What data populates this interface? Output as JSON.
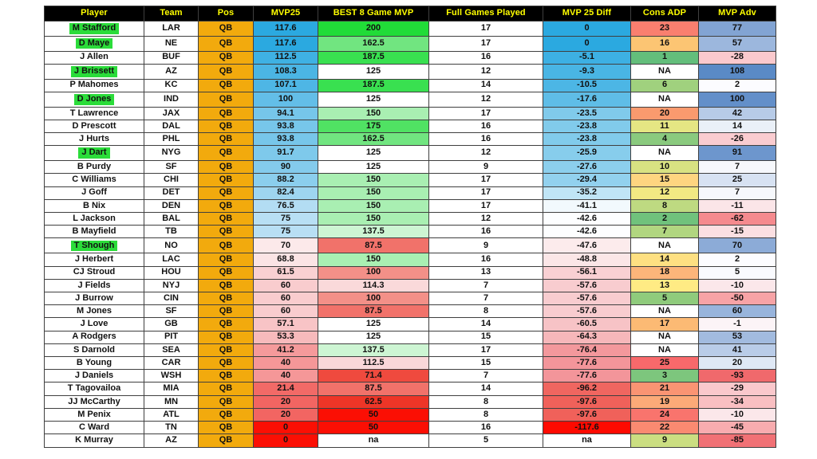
{
  "sheet": {
    "columns": [
      "Player",
      "Team",
      "Pos",
      "MVP25",
      "BEST 8 Game MVP",
      "Full Games Played",
      "MVP 25 Diff",
      "Cons ADP",
      "MVP Adv"
    ],
    "colors": {
      "header_bg": "#000000",
      "header_text": "#FFFF00",
      "pos_bg": "#F2AA0D",
      "name_highlight": "#2BDC3A",
      "grid_border": "#3F3F3F",
      "scale_blue_high": "#2BA9E0",
      "scale_green_high": "#21DC38",
      "scale_red_low": "#FB0F04",
      "scale_adv_blue": "#5A8AC6",
      "scale_adv_red": "#F8696B"
    },
    "rows": [
      {
        "player": "M Stafford",
        "hl": true,
        "team": "LAR",
        "pos": "QB",
        "mvp25": {
          "v": "117.6",
          "bg": "#2BA9E0"
        },
        "best8": {
          "v": "200",
          "bg": "#21DC38"
        },
        "games": {
          "v": "17",
          "bg": "#FFFFFF"
        },
        "diff": {
          "v": "0",
          "bg": "#2BA9E0"
        },
        "adp": {
          "v": "23",
          "bg": "#F97F6F"
        },
        "adv": {
          "v": "77",
          "bg": "#82A4D3"
        }
      },
      {
        "player": "D Maye",
        "hl": true,
        "team": "NE",
        "pos": "QB",
        "mvp25": {
          "v": "117.6",
          "bg": "#2BA9E0"
        },
        "best8": {
          "v": "162.5",
          "bg": "#71E580"
        },
        "games": {
          "v": "17",
          "bg": "#FFFFFF"
        },
        "diff": {
          "v": "0",
          "bg": "#2BA9E0"
        },
        "adp": {
          "v": "16",
          "bg": "#FCC573"
        },
        "adv": {
          "v": "57",
          "bg": "#9CB7DD"
        }
      },
      {
        "player": "J Allen",
        "hl": false,
        "team": "BUF",
        "pos": "QB",
        "mvp25": {
          "v": "112.5",
          "bg": "#3FB1E3"
        },
        "best8": {
          "v": "187.5",
          "bg": "#39E050"
        },
        "games": {
          "v": "16",
          "bg": "#FFFFFF"
        },
        "diff": {
          "v": "-5.1",
          "bg": "#3DB0E3"
        },
        "adp": {
          "v": "1",
          "bg": "#63BE7B"
        },
        "adv": {
          "v": "-28",
          "bg": "#FAC9CD"
        }
      },
      {
        "player": "J Brissett",
        "hl": true,
        "team": "AZ",
        "pos": "QB",
        "mvp25": {
          "v": "108.3",
          "bg": "#4BB5E4"
        },
        "best8": {
          "v": "125",
          "bg": "#FFFFFF"
        },
        "games": {
          "v": "12",
          "bg": "#FFFFFF"
        },
        "diff": {
          "v": "-9.3",
          "bg": "#49B5E4"
        },
        "adp": {
          "v": "NA",
          "bg": "#FFFFFF"
        },
        "adv": {
          "v": "108",
          "bg": "#5A8AC6"
        }
      },
      {
        "player": "P Mahomes",
        "hl": false,
        "team": "KC",
        "pos": "QB",
        "mvp25": {
          "v": "107.1",
          "bg": "#4EB6E5"
        },
        "best8": {
          "v": "187.5",
          "bg": "#39E050"
        },
        "games": {
          "v": "14",
          "bg": "#FFFFFF"
        },
        "diff": {
          "v": "-10.5",
          "bg": "#4CB6E5"
        },
        "adp": {
          "v": "6",
          "bg": "#A0D17E"
        },
        "adv": {
          "v": "2",
          "bg": "#FCFCFF"
        }
      },
      {
        "player": "D Jones",
        "hl": true,
        "team": "IND",
        "pos": "QB",
        "mvp25": {
          "v": "100",
          "bg": "#63BEE8"
        },
        "best8": {
          "v": "125",
          "bg": "#FFFFFF"
        },
        "games": {
          "v": "12",
          "bg": "#FFFFFF"
        },
        "diff": {
          "v": "-17.6",
          "bg": "#5FBDE7"
        },
        "adp": {
          "v": "NA",
          "bg": "#FFFFFF"
        },
        "adv": {
          "v": "100",
          "bg": "#638FC9"
        }
      },
      {
        "player": "T Lawrence",
        "hl": false,
        "team": "JAX",
        "pos": "QB",
        "mvp25": {
          "v": "94.1",
          "bg": "#76C6EA"
        },
        "best8": {
          "v": "150",
          "bg": "#A9EFB2"
        },
        "games": {
          "v": "17",
          "bg": "#FFFFFF"
        },
        "diff": {
          "v": "-23.5",
          "bg": "#80CAEB"
        },
        "adp": {
          "v": "20",
          "bg": "#FA9A6E"
        },
        "adv": {
          "v": "42",
          "bg": "#B7CBE7"
        }
      },
      {
        "player": "D Prescott",
        "hl": false,
        "team": "DAL",
        "pos": "QB",
        "mvp25": {
          "v": "93.8",
          "bg": "#77C6EA"
        },
        "best8": {
          "v": "175",
          "bg": "#50E263"
        },
        "games": {
          "v": "16",
          "bg": "#FFFFFF"
        },
        "diff": {
          "v": "-23.8",
          "bg": "#81CBEB"
        },
        "adp": {
          "v": "11",
          "bg": "#E5E683"
        },
        "adv": {
          "v": "14",
          "bg": "#EAF0F8"
        }
      },
      {
        "player": "J Hurts",
        "hl": false,
        "team": "PHL",
        "pos": "QB",
        "mvp25": {
          "v": "93.8",
          "bg": "#77C6EA"
        },
        "best8": {
          "v": "162.5",
          "bg": "#71E580"
        },
        "games": {
          "v": "16",
          "bg": "#FFFFFF"
        },
        "diff": {
          "v": "-23.8",
          "bg": "#81CBEB"
        },
        "adp": {
          "v": "4",
          "bg": "#8ACA7E"
        },
        "adv": {
          "v": "-26",
          "bg": "#FACCD0"
        }
      },
      {
        "player": "J Dart",
        "hl": true,
        "team": "NYG",
        "pos": "QB",
        "mvp25": {
          "v": "91.7",
          "bg": "#7EC9EB"
        },
        "best8": {
          "v": "125",
          "bg": "#FFFFFF"
        },
        "games": {
          "v": "12",
          "bg": "#FFFFFF"
        },
        "diff": {
          "v": "-25.9",
          "bg": "#87CDEC"
        },
        "adp": {
          "v": "NA",
          "bg": "#FFFFFF"
        },
        "adv": {
          "v": "91",
          "bg": "#6D96CD"
        }
      },
      {
        "player": "B Purdy",
        "hl": false,
        "team": "SF",
        "pos": "QB",
        "mvp25": {
          "v": "90",
          "bg": "#84CBEC"
        },
        "best8": {
          "v": "125",
          "bg": "#FFFFFF"
        },
        "games": {
          "v": "9",
          "bg": "#FFFFFF"
        },
        "diff": {
          "v": "-27.6",
          "bg": "#8CCFED"
        },
        "adp": {
          "v": "10",
          "bg": "#D8E282"
        },
        "adv": {
          "v": "7",
          "bg": "#F6F8FC"
        }
      },
      {
        "player": "C Williams",
        "hl": false,
        "team": "CHI",
        "pos": "QB",
        "mvp25": {
          "v": "88.2",
          "bg": "#8BCEED"
        },
        "best8": {
          "v": "150",
          "bg": "#A9EFB2"
        },
        "games": {
          "v": "17",
          "bg": "#FFFFFF"
        },
        "diff": {
          "v": "-29.4",
          "bg": "#92D1EE"
        },
        "adp": {
          "v": "15",
          "bg": "#FED580"
        },
        "adv": {
          "v": "25",
          "bg": "#D7E2F2"
        }
      },
      {
        "player": "J Goff",
        "hl": false,
        "team": "DET",
        "pos": "QB",
        "mvp25": {
          "v": "82.4",
          "bg": "#9ED5F0"
        },
        "best8": {
          "v": "150",
          "bg": "#A9EFB2"
        },
        "games": {
          "v": "17",
          "bg": "#FFFFFF"
        },
        "diff": {
          "v": "-35.2",
          "bg": "#C0E5F6"
        },
        "adp": {
          "v": "12",
          "bg": "#F2E983"
        },
        "adv": {
          "v": "7",
          "bg": "#F6F8FC"
        }
      },
      {
        "player": "B Nix",
        "hl": false,
        "team": "DEN",
        "pos": "QB",
        "mvp25": {
          "v": "76.5",
          "bg": "#B3DDF3"
        },
        "best8": {
          "v": "150",
          "bg": "#A9EFB2"
        },
        "games": {
          "v": "17",
          "bg": "#FFFFFF"
        },
        "diff": {
          "v": "-41.1",
          "bg": "#F2F9FD"
        },
        "adp": {
          "v": "8",
          "bg": "#BEDA81"
        },
        "adv": {
          "v": "-11",
          "bg": "#FBE5E8"
        }
      },
      {
        "player": "L Jackson",
        "hl": false,
        "team": "BAL",
        "pos": "QB",
        "mvp25": {
          "v": "75",
          "bg": "#B8DFF4"
        },
        "best8": {
          "v": "150",
          "bg": "#A9EFB2"
        },
        "games": {
          "v": "12",
          "bg": "#FFFFFF"
        },
        "diff": {
          "v": "-42.6",
          "bg": "#FDFEFF"
        },
        "adp": {
          "v": "2",
          "bg": "#70C27C"
        },
        "adv": {
          "v": "-62",
          "bg": "#F58A8E"
        }
      },
      {
        "player": "B Mayfield",
        "hl": false,
        "team": "TB",
        "pos": "QB",
        "mvp25": {
          "v": "75",
          "bg": "#B8DFF4"
        },
        "best8": {
          "v": "137.5",
          "bg": "#CDF5D3"
        },
        "games": {
          "v": "16",
          "bg": "#FFFFFF"
        },
        "diff": {
          "v": "-42.6",
          "bg": "#FDFEFF"
        },
        "adp": {
          "v": "7",
          "bg": "#B1D680"
        },
        "adv": {
          "v": "-15",
          "bg": "#FBDFE2"
        }
      },
      {
        "player": "T Shough",
        "hl": true,
        "team": "NO",
        "pos": "QB",
        "mvp25": {
          "v": "70",
          "bg": "#FCE9EA"
        },
        "best8": {
          "v": "87.5",
          "bg": "#F1726A"
        },
        "games": {
          "v": "9",
          "bg": "#FFFFFF"
        },
        "diff": {
          "v": "-47.6",
          "bg": "#FCEBEC"
        },
        "adp": {
          "v": "NA",
          "bg": "#FFFFFF"
        },
        "adv": {
          "v": "70",
          "bg": "#8CABD7"
        }
      },
      {
        "player": "J Herbert",
        "hl": false,
        "team": "LAC",
        "pos": "QB",
        "mvp25": {
          "v": "68.8",
          "bg": "#FBE4E5"
        },
        "best8": {
          "v": "150",
          "bg": "#A9EFB2"
        },
        "games": {
          "v": "16",
          "bg": "#FFFFFF"
        },
        "diff": {
          "v": "-48.8",
          "bg": "#FBE6E7"
        },
        "adp": {
          "v": "14",
          "bg": "#FEE082"
        },
        "adv": {
          "v": "2",
          "bg": "#FCFCFF"
        }
      },
      {
        "player": "CJ Stroud",
        "hl": false,
        "team": "HOU",
        "pos": "QB",
        "mvp25": {
          "v": "61.5",
          "bg": "#F9D0D2"
        },
        "best8": {
          "v": "100",
          "bg": "#F39088"
        },
        "games": {
          "v": "13",
          "bg": "#FFFFFF"
        },
        "diff": {
          "v": "-56.1",
          "bg": "#F9D0D3"
        },
        "adp": {
          "v": "18",
          "bg": "#FCB57A"
        },
        "adv": {
          "v": "5",
          "bg": "#F9FAFE"
        }
      },
      {
        "player": "J Fields",
        "hl": false,
        "team": "NYJ",
        "pos": "QB",
        "mvp25": {
          "v": "60",
          "bg": "#F9CCCE"
        },
        "best8": {
          "v": "114.3",
          "bg": "#FAD9DA"
        },
        "games": {
          "v": "7",
          "bg": "#FFFFFF"
        },
        "diff": {
          "v": "-57.6",
          "bg": "#F8CCCF"
        },
        "adp": {
          "v": "13",
          "bg": "#FFEB84"
        },
        "adv": {
          "v": "-10",
          "bg": "#FBE7EA"
        }
      },
      {
        "player": "J Burrow",
        "hl": false,
        "team": "CIN",
        "pos": "QB",
        "mvp25": {
          "v": "60",
          "bg": "#F9CCCE"
        },
        "best8": {
          "v": "100",
          "bg": "#F39088"
        },
        "games": {
          "v": "7",
          "bg": "#FFFFFF"
        },
        "diff": {
          "v": "-57.6",
          "bg": "#F8CCCF"
        },
        "adp": {
          "v": "5",
          "bg": "#8FCB7C"
        },
        "adv": {
          "v": "-50",
          "bg": "#F7A3A6"
        }
      },
      {
        "player": "M Jones",
        "hl": false,
        "team": "SF",
        "pos": "QB",
        "mvp25": {
          "v": "60",
          "bg": "#F9CCCE"
        },
        "best8": {
          "v": "87.5",
          "bg": "#F1726A"
        },
        "games": {
          "v": "8",
          "bg": "#FFFFFF"
        },
        "diff": {
          "v": "-57.6",
          "bg": "#F8CCCF"
        },
        "adp": {
          "v": "NA",
          "bg": "#FFFFFF"
        },
        "adv": {
          "v": "60",
          "bg": "#98B4DC"
        }
      },
      {
        "player": "J Love",
        "hl": false,
        "team": "GB",
        "pos": "QB",
        "mvp25": {
          "v": "57.1",
          "bg": "#F8C4C6"
        },
        "best8": {
          "v": "125",
          "bg": "#FFFFFF"
        },
        "games": {
          "v": "14",
          "bg": "#FFFFFF"
        },
        "diff": {
          "v": "-60.5",
          "bg": "#F7C3C6"
        },
        "adp": {
          "v": "17",
          "bg": "#FCBA74"
        },
        "adv": {
          "v": "-1",
          "bg": "#FCF4F7"
        }
      },
      {
        "player": "A Rodgers",
        "hl": false,
        "team": "PIT",
        "pos": "QB",
        "mvp25": {
          "v": "53.3",
          "bg": "#F7BABC"
        },
        "best8": {
          "v": "125",
          "bg": "#FFFFFF"
        },
        "games": {
          "v": "15",
          "bg": "#FFFFFF"
        },
        "diff": {
          "v": "-64.3",
          "bg": "#F6B7BA"
        },
        "adp": {
          "v": "NA",
          "bg": "#FFFFFF"
        },
        "adv": {
          "v": "53",
          "bg": "#A2BBDF"
        }
      },
      {
        "player": "S Darnold",
        "hl": false,
        "team": "SEA",
        "pos": "QB",
        "mvp25": {
          "v": "41.2",
          "bg": "#F59A9B"
        },
        "best8": {
          "v": "137.5",
          "bg": "#CDF5D3"
        },
        "games": {
          "v": "17",
          "bg": "#FFFFFF"
        },
        "diff": {
          "v": "-76.4",
          "bg": "#F3989C"
        },
        "adp": {
          "v": "NA",
          "bg": "#FFFFFF"
        },
        "adv": {
          "v": "41",
          "bg": "#B9CCE8"
        }
      },
      {
        "player": "B Young",
        "hl": false,
        "team": "CAR",
        "pos": "QB",
        "mvp25": {
          "v": "40",
          "bg": "#F59798"
        },
        "best8": {
          "v": "112.5",
          "bg": "#FAD7D9"
        },
        "games": {
          "v": "15",
          "bg": "#FFFFFF"
        },
        "diff": {
          "v": "-77.6",
          "bg": "#F3959A"
        },
        "adp": {
          "v": "25",
          "bg": "#F8696B"
        },
        "adv": {
          "v": "20",
          "bg": "#DFE8F5"
        }
      },
      {
        "player": "J Daniels",
        "hl": false,
        "team": "WSH",
        "pos": "QB",
        "mvp25": {
          "v": "40",
          "bg": "#F59798"
        },
        "best8": {
          "v": "71.4",
          "bg": "#EF4A3E"
        },
        "games": {
          "v": "7",
          "bg": "#FFFFFF"
        },
        "diff": {
          "v": "-77.6",
          "bg": "#F3959A"
        },
        "adp": {
          "v": "3",
          "bg": "#7DC67D"
        },
        "adv": {
          "v": "-93",
          "bg": "#F0696C"
        }
      },
      {
        "player": "T Tagovailoa",
        "hl": false,
        "team": "MIA",
        "pos": "QB",
        "mvp25": {
          "v": "21.4",
          "bg": "#F26A67"
        },
        "best8": {
          "v": "87.5",
          "bg": "#F1726A"
        },
        "games": {
          "v": "14",
          "bg": "#FFFFFF"
        },
        "diff": {
          "v": "-96.2",
          "bg": "#F06660"
        },
        "adp": {
          "v": "21",
          "bg": "#FA9473"
        },
        "adv": {
          "v": "-29",
          "bg": "#FAC8CC"
        }
      },
      {
        "player": "JJ McCarthy",
        "hl": false,
        "team": "MN",
        "pos": "QB",
        "mvp25": {
          "v": "20",
          "bg": "#F26562"
        },
        "best8": {
          "v": "62.5",
          "bg": "#EE3527"
        },
        "games": {
          "v": "8",
          "bg": "#FFFFFF"
        },
        "diff": {
          "v": "-97.6",
          "bg": "#F0615A"
        },
        "adp": {
          "v": "19",
          "bg": "#FCAA78"
        },
        "adv": {
          "v": "-34",
          "bg": "#F9BFC2"
        }
      },
      {
        "player": "M Penix",
        "hl": false,
        "team": "ATL",
        "pos": "QB",
        "mvp25": {
          "v": "20",
          "bg": "#F26562"
        },
        "best8": {
          "v": "50",
          "bg": "#FB0F04"
        },
        "games": {
          "v": "8",
          "bg": "#FFFFFF"
        },
        "diff": {
          "v": "-97.6",
          "bg": "#F0615A"
        },
        "adp": {
          "v": "24",
          "bg": "#F9746D"
        },
        "adv": {
          "v": "-10",
          "bg": "#FBE7EA"
        }
      },
      {
        "player": "C Ward",
        "hl": false,
        "team": "TN",
        "pos": "QB",
        "mvp25": {
          "v": "0",
          "bg": "#FB0F04"
        },
        "best8": {
          "v": "50",
          "bg": "#FB0F04"
        },
        "games": {
          "v": "16",
          "bg": "#FFFFFF"
        },
        "diff": {
          "v": "-117.6",
          "bg": "#FE0A00"
        },
        "adp": {
          "v": "22",
          "bg": "#FA8A71"
        },
        "adv": {
          "v": "-45",
          "bg": "#F8ACAF"
        }
      },
      {
        "player": "K Murray",
        "hl": false,
        "team": "AZ",
        "pos": "QB",
        "mvp25": {
          "v": "0",
          "bg": "#FB0F04"
        },
        "best8": {
          "v": "na",
          "bg": "#FFFFFF"
        },
        "games": {
          "v": "5",
          "bg": "#FFFFFF"
        },
        "diff": {
          "v": "na",
          "bg": "#FFFFFF"
        },
        "adp": {
          "v": "9",
          "bg": "#CBDE81"
        },
        "adv": {
          "v": "-85",
          "bg": "#F17175"
        }
      }
    ]
  }
}
